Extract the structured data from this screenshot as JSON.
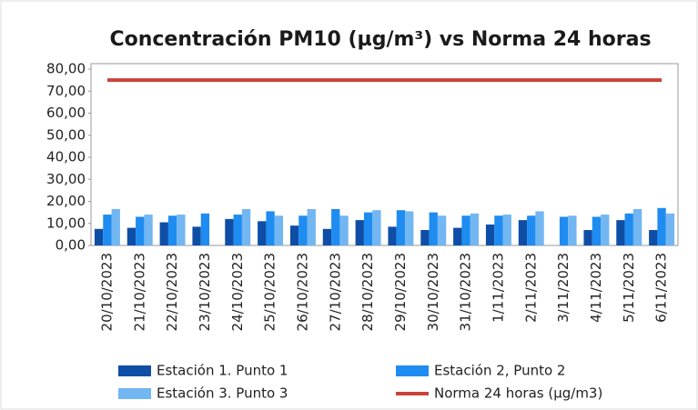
{
  "chart_data": {
    "type": "bar",
    "title": "Concentración PM10 (µg/m³) vs Norma 24 horas",
    "categories": [
      "20/10/2023",
      "21/10/2023",
      "22/10/2023",
      "23/10/2023",
      "24/10/2023",
      "25/10/2023",
      "26/10/2023",
      "27/10/2023",
      "28/10/2023",
      "29/10/2023",
      "30/10/2023",
      "31/10/2023",
      "1/11/2023",
      "2/11/2023",
      "3/11/2023",
      "4/11/2023",
      "5/11/2023",
      "6/11/2023"
    ],
    "series": [
      {
        "name": "Estación 1. Punto 1",
        "color": "#0f4ea6",
        "type": "bar",
        "values": [
          7.5,
          8,
          10.5,
          8.5,
          12,
          11,
          9,
          7.5,
          11.5,
          8.5,
          7,
          8,
          9.5,
          11.5,
          null,
          7,
          11.5,
          7
        ]
      },
      {
        "name": "Estación 2, Punto 2",
        "color": "#1e8cf0",
        "type": "bar",
        "values": [
          14,
          13,
          13.5,
          14.5,
          14,
          15.5,
          13.5,
          16.5,
          15,
          16,
          15,
          13.5,
          13.5,
          13.5,
          13,
          13,
          14.5,
          17
        ]
      },
      {
        "name": "Estación 3. Punto 3",
        "color": "#72b6f2",
        "type": "bar",
        "values": [
          16.5,
          14,
          14,
          null,
          16.5,
          13.5,
          16.5,
          13.5,
          16,
          15.5,
          13.5,
          14.5,
          14,
          15.5,
          13.5,
          14,
          16.5,
          14.5
        ]
      },
      {
        "name": "Norma 24 horas (µg/m3)",
        "color": "#c9433b",
        "type": "line",
        "values": [
          75,
          75,
          75,
          75,
          75,
          75,
          75,
          75,
          75,
          75,
          75,
          75,
          75,
          75,
          75,
          75,
          75,
          75
        ]
      }
    ],
    "ylim": [
      0,
      80
    ],
    "yticks": [
      {
        "value": 0,
        "label": "0,00"
      },
      {
        "value": 10,
        "label": "10,00"
      },
      {
        "value": 20,
        "label": "20,00"
      },
      {
        "value": 30,
        "label": "30,00"
      },
      {
        "value": 40,
        "label": "40,00"
      },
      {
        "value": 50,
        "label": "50,00"
      },
      {
        "value": 60,
        "label": "60,00"
      },
      {
        "value": 70,
        "label": "70,00"
      },
      {
        "value": 80,
        "label": "80,00"
      }
    ],
    "grid": false
  }
}
